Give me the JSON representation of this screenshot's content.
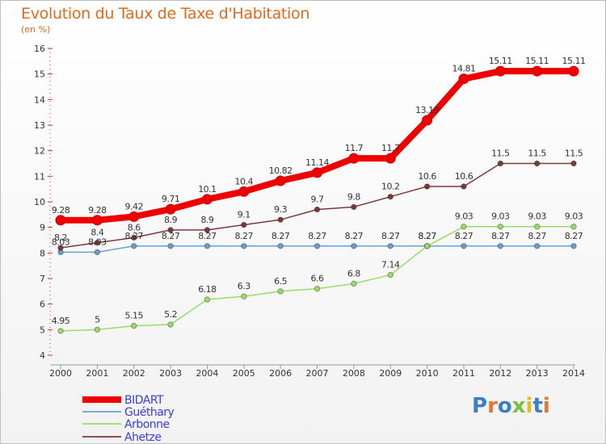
{
  "chart_data": {
    "type": "line",
    "title": "Evolution du Taux de Taxe d'Habitation",
    "subtitle": "(en %)",
    "x": [
      "2000",
      "2001",
      "2002",
      "2003",
      "2004",
      "2005",
      "2006",
      "2007",
      "2008",
      "2009",
      "2010",
      "2011",
      "2012",
      "2013",
      "2014"
    ],
    "ylim": [
      4,
      16
    ],
    "yticks": [
      "4",
      "5",
      "6",
      "7",
      "8",
      "9",
      "10",
      "11",
      "12",
      "13",
      "14",
      "15",
      "16"
    ],
    "grid": false,
    "legend_position": "bottom-left",
    "series": [
      {
        "name": "BIDART",
        "color": "#ee0000",
        "values": [
          9.28,
          9.28,
          9.42,
          9.71,
          10.1,
          10.4,
          10.82,
          11.14,
          11.7,
          11.7,
          13.19,
          14.81,
          15.11,
          15.11,
          15.11
        ],
        "labels": [
          "9.28",
          "9.28",
          "9.42",
          "9.71",
          "10.1",
          "10.4",
          "10.82",
          "11.14",
          "11.7",
          "11.7",
          "13.19",
          "14.81",
          "15.11",
          "15.11",
          "15.11"
        ]
      },
      {
        "name": "Guéthary",
        "color": "#6a9fd2",
        "values": [
          8.03,
          8.03,
          8.27,
          8.27,
          8.27,
          8.27,
          8.27,
          8.27,
          8.27,
          8.27,
          8.27,
          8.27,
          8.27,
          8.27,
          8.27
        ],
        "labels": [
          "8.03",
          "8.03",
          "8.27",
          "8.27",
          "8.27",
          "8.27",
          "8.27",
          "8.27",
          "8.27",
          "8.27",
          "8.27",
          "8.27",
          "8.27",
          "8.27",
          "8.27"
        ]
      },
      {
        "name": "Arbonne",
        "color": "#99dd66",
        "values": [
          4.95,
          5,
          5.15,
          5.2,
          6.18,
          6.3,
          6.5,
          6.6,
          6.8,
          7.14,
          8.27,
          9.03,
          9.03,
          9.03,
          9.03
        ],
        "labels": [
          "4.95",
          "5",
          "5.15",
          "5.2",
          "6.18",
          "6.3",
          "6.5",
          "6.6",
          "6.8",
          "7.14",
          "8.27",
          "9.03",
          "9.03",
          "9.03",
          "9.03"
        ]
      },
      {
        "name": "Ahetze",
        "color": "#7a3a3a",
        "values": [
          8.2,
          8.4,
          8.6,
          8.9,
          8.9,
          9.1,
          9.3,
          9.7,
          9.8,
          10.2,
          10.6,
          10.6,
          11.5,
          11.5,
          11.5
        ],
        "labels": [
          "8.2",
          "8.4",
          "8.6",
          "8.9",
          "8.9",
          "9.1",
          "9.3",
          "9.7",
          "9.8",
          "10.2",
          "10.6",
          "10.6",
          "11.5",
          "11.5",
          "11.5"
        ]
      }
    ]
  },
  "logo": {
    "text": "Proxiti",
    "letters": [
      "P",
      "r",
      "o",
      "x",
      "i",
      "t",
      "i"
    ],
    "colors": [
      "#3b7fc8",
      "#e07a2a",
      "#3b7fc8",
      "#7bc043",
      "#e0c020",
      "#3b7fc8",
      "#e07a2a"
    ]
  }
}
